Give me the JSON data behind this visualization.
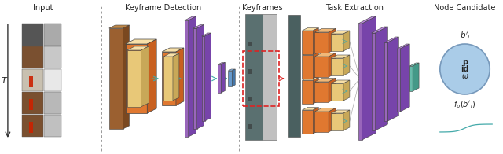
{
  "title_input": "Input",
  "title_keyframe_det": "Keyframe Detection",
  "title_keyframes": "Keyframes",
  "title_task_ext": "Task Extraction",
  "title_node_cand": "Node Candidate",
  "label_T": "T",
  "bg_color": "#ffffff",
  "dashed_line_color": "#999999",
  "arrow_color": "#333333",
  "orange_face": "#E07830",
  "orange_side": "#C86020",
  "orange_top": "#F0B878",
  "tan_face": "#E8C878",
  "tan_side": "#C8A858",
  "tan_top": "#F8E0A8",
  "brown_face": "#9B6030",
  "brown_side": "#7A4820",
  "brown_top": "#C08848",
  "purple_face": "#9966BB",
  "purple_side": "#7744AA",
  "purple_top": "#BB88DD",
  "teal_color": "#44AAAA",
  "gray_face": "#888888",
  "gray_side": "#666666",
  "gray_top": "#AAAAAA",
  "gray2_face": "#BBBBBB",
  "gray2_side": "#999999",
  "gray2_top": "#DDDDDD",
  "blue_face": "#6699CC",
  "blue_side": "#4477AA",
  "blue_top": "#88BBEE",
  "green_face": "#66BBAA",
  "green_side": "#449988",
  "green_top": "#88DDCC",
  "circle_fill": "#AACCE8",
  "circle_edge": "#7799BB",
  "red_dash": "#DD2222",
  "text_color": "#222222",
  "title_fontsize": 7.0,
  "label_fontsize": 7.0
}
